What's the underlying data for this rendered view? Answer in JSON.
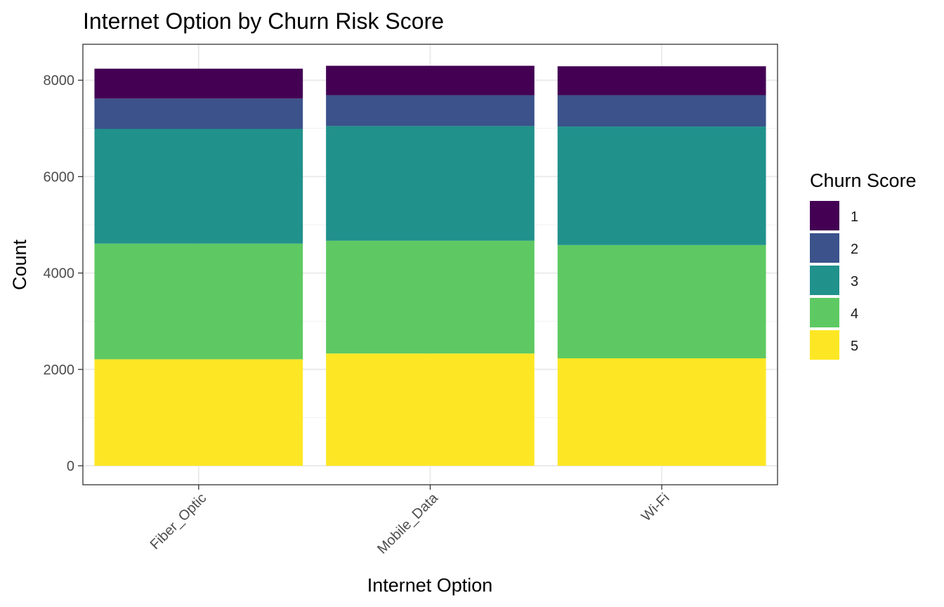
{
  "chart_data": {
    "type": "bar",
    "stacked": true,
    "title": "Internet Option by Churn Risk Score",
    "xlabel": "Internet Option",
    "ylabel": "Count",
    "categories": [
      "Fiber_Optic",
      "Mobile_Data",
      "Wi-Fi"
    ],
    "ylim": [
      0,
      8700
    ],
    "yticks": [
      0,
      2000,
      4000,
      6000,
      8000
    ],
    "grid": true,
    "legend": {
      "title": "Churn Score",
      "position": "right"
    },
    "series": [
      {
        "name": "5",
        "color": "#FDE725",
        "values": [
          2210,
          2330,
          2230
        ]
      },
      {
        "name": "4",
        "color": "#5EC962",
        "values": [
          2400,
          2340,
          2350
        ]
      },
      {
        "name": "3",
        "color": "#21918C",
        "values": [
          2380,
          2380,
          2460
        ]
      },
      {
        "name": "2",
        "color": "#3B528B",
        "values": [
          630,
          640,
          650
        ]
      },
      {
        "name": "1",
        "color": "#440154",
        "values": [
          620,
          610,
          600
        ]
      }
    ]
  }
}
